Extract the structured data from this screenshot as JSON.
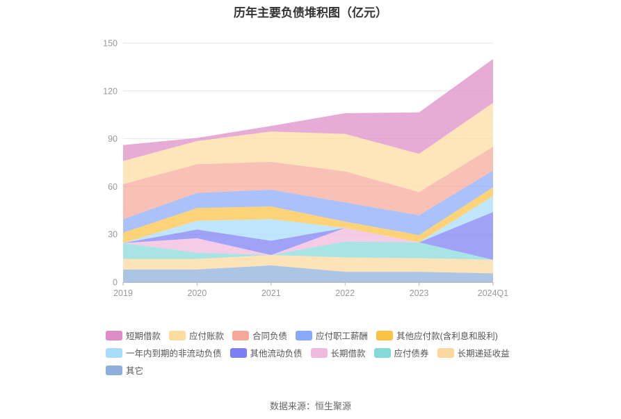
{
  "chart_data": {
    "type": "area",
    "stacked": true,
    "title": "历年主要负债堆积图（亿元）",
    "categories": [
      "2019",
      "2020",
      "2021",
      "2022",
      "2023",
      "2024Q1"
    ],
    "y_ticks": [
      "0",
      "30",
      "60",
      "90",
      "120",
      "150"
    ],
    "ylim": [
      0,
      150
    ],
    "grid": true,
    "legend_position": "bottom",
    "series": [
      {
        "name": "其它",
        "color": "#8eaedb",
        "values": [
          8,
          8,
          10.5,
          6.5,
          6.5,
          5.5
        ]
      },
      {
        "name": "长期递延收益",
        "color": "#fdd89e",
        "values": [
          6.5,
          6.5,
          6.5,
          9,
          8.5,
          8.5
        ]
      },
      {
        "name": "应付债券",
        "color": "#86d9d9",
        "values": [
          10,
          4,
          0,
          10,
          10,
          0
        ]
      },
      {
        "name": "长期借款",
        "color": "#f1b9dd",
        "values": [
          0,
          9,
          0,
          8.5,
          0,
          0
        ]
      },
      {
        "name": "其他流动负债",
        "color": "#7b7ef5",
        "values": [
          0,
          5.5,
          9,
          0,
          0,
          30
        ]
      },
      {
        "name": "一年内到期的非流动负债",
        "color": "#a8dcfd",
        "values": [
          0,
          5.5,
          13.5,
          0,
          0,
          10
        ]
      },
      {
        "name": "其他应付款(含利息和股利)",
        "color": "#fcc247",
        "values": [
          6.5,
          8,
          8,
          4,
          4.5,
          5.5
        ]
      },
      {
        "name": "应付职工薪酬",
        "color": "#89a9f8",
        "values": [
          8.5,
          9.5,
          10.5,
          12,
          12.5,
          10.5
        ]
      },
      {
        "name": "合同负债",
        "color": "#f7a799",
        "values": [
          22,
          18,
          17.5,
          19.5,
          14.5,
          15
        ]
      },
      {
        "name": "应付账款",
        "color": "#fddca0",
        "values": [
          14.5,
          14.5,
          19,
          23.5,
          24,
          27.5
        ]
      },
      {
        "name": "短期借款",
        "color": "#de8cc6",
        "values": [
          10,
          2,
          3.5,
          13,
          26,
          27.5
        ]
      }
    ],
    "legend_order": [
      "短期借款",
      "应付账款",
      "合同负债",
      "应付职工薪酬",
      "其他应付款(含利息和股利)",
      "一年内到期的非流动负债",
      "其他流动负债",
      "长期借款",
      "应付债券",
      "长期递延收益",
      "其它"
    ],
    "legend_rows": [
      5,
      5,
      1
    ]
  },
  "source_text": "数据来源：恒生聚源"
}
